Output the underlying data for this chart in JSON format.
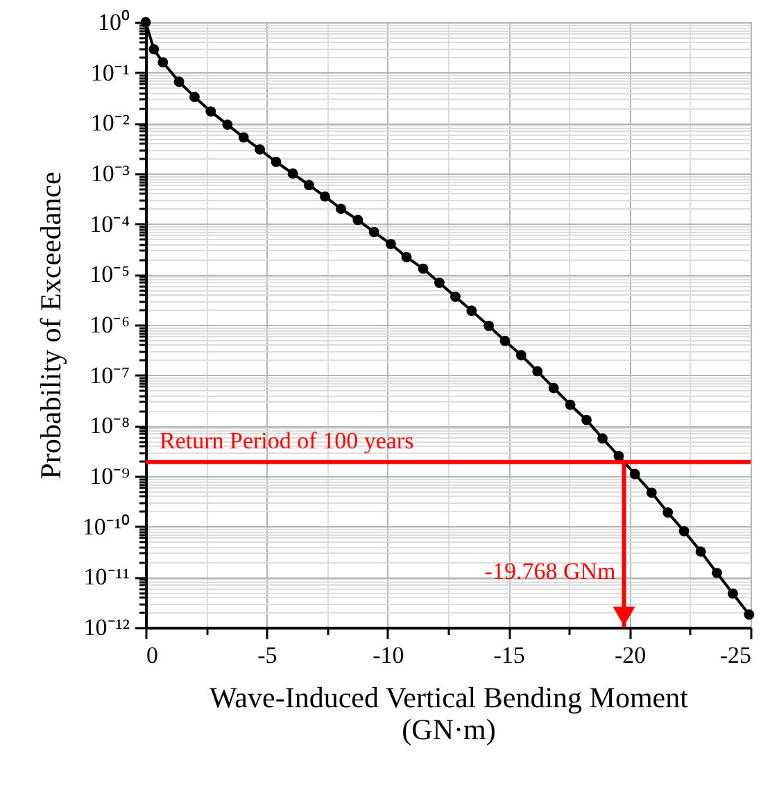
{
  "chart_data": {
    "type": "line",
    "xlabel": "Wave-Induced Vertical Bending Moment\n(GN·m)",
    "ylabel": "Probability of Exceedance",
    "x": [
      0,
      -0.34,
      -0.71,
      -1.38,
      -2.02,
      -2.69,
      -3.38,
      -4.05,
      -4.72,
      -5.39,
      -6.08,
      -6.75,
      -7.41,
      -8.07,
      -8.77,
      -9.44,
      -10.13,
      -10.78,
      -11.47,
      -12.14,
      -12.8,
      -13.47,
      -14.18,
      -14.85,
      -15.52,
      -16.19,
      -16.86,
      -17.55,
      -18.22,
      -18.88,
      -19.55,
      -20.22,
      -20.91,
      -21.58,
      -22.25,
      -22.94,
      -23.61,
      -24.27,
      -24.94
    ],
    "series": [
      {
        "color": "#000000",
        "values": [
          1,
          0.29,
          0.16,
          0.066,
          0.033,
          0.017,
          0.0093,
          0.0052,
          0.003,
          0.0017,
          0.001,
          0.00059,
          0.00035,
          0.0002,
          0.00012,
          6.9e-05,
          4e-05,
          2.2e-05,
          1.3e-05,
          6.8e-06,
          3.6e-06,
          1.9e-06,
          9.5e-07,
          4.8e-07,
          2.5e-07,
          1.2e-07,
          5.6e-08,
          2.6e-08,
          1.3e-08,
          5.6e-09,
          2.5e-09,
          1.1e-09,
          4.7e-10,
          1.9e-10,
          8.1e-11,
          3.2e-11,
          1.2e-11,
          4.7e-12,
          1.8e-12
        ]
      }
    ],
    "xlim": [
      0,
      -25
    ],
    "xticks": [
      0,
      {
        "value": -2.5,
        "label": null
      },
      -5,
      {
        "value": -7.5,
        "label": null
      },
      -10,
      {
        "value": -12.5,
        "label": null
      },
      -15,
      {
        "value": -17.5,
        "label": null
      },
      -20,
      {
        "value": -22.5,
        "label": null
      },
      -25
    ],
    "ylim": [
      1e-12,
      1
    ],
    "yticks": [
      {
        "value": 1,
        "label": "10⁰"
      },
      {
        "value": 0.1,
        "label": "10⁻¹"
      },
      {
        "value": 0.01,
        "label": "10⁻²"
      },
      {
        "value": 0.001,
        "label": "10⁻³"
      },
      {
        "value": 0.0001,
        "label": "10⁻⁴"
      },
      {
        "value": 1e-05,
        "label": "10⁻⁵"
      },
      {
        "value": 1e-06,
        "label": "10⁻⁶"
      },
      {
        "value": 1e-07,
        "label": "10⁻⁷"
      },
      {
        "value": 1e-08,
        "label": "10⁻⁸"
      },
      {
        "value": 1e-09,
        "label": "10⁻⁹"
      },
      {
        "value": 1e-10,
        "label": "10⁻¹⁰"
      },
      {
        "value": 1e-11,
        "label": "10⁻¹¹"
      },
      {
        "value": 1e-12,
        "label": "10⁻¹²"
      }
    ],
    "log": "y",
    "grid": true,
    "marker": "circle",
    "line_style": "solid",
    "ref_lines": [
      {
        "axis": "y",
        "value": 1.9e-09,
        "label": "Return Period of 100 years",
        "color": "#ff0000"
      },
      {
        "axis": "x",
        "value": -19.768,
        "label": "-19.768 GNm",
        "color": "#ff0000"
      }
    ]
  }
}
